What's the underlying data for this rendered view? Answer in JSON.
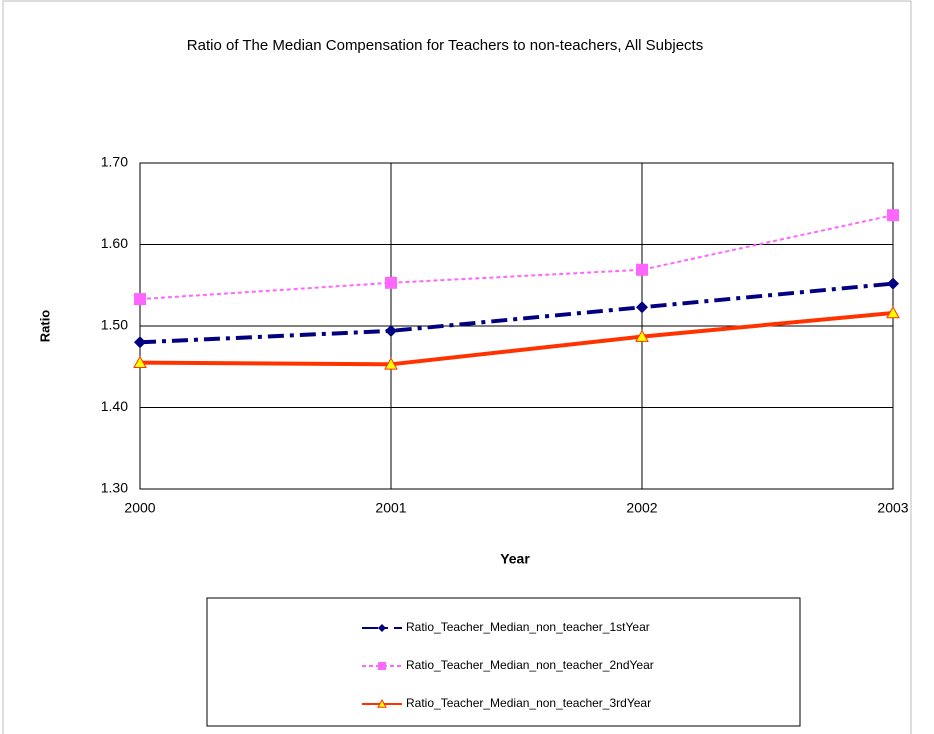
{
  "chart_data": {
    "type": "line",
    "title": "Ratio of The Median Compensation for Teachers to non-teachers, All Subjects",
    "x_label": "Year",
    "y_label": "Ratio",
    "categories": [
      "2000",
      "2001",
      "2002",
      "2003"
    ],
    "ylim": [
      1.3,
      1.7
    ],
    "yticks": [
      {
        "value": 1.3,
        "label": "1.30"
      },
      {
        "value": 1.4,
        "label": "1.40"
      },
      {
        "value": 1.5,
        "label": "1.50"
      },
      {
        "value": 1.6,
        "label": "1.60"
      },
      {
        "value": 1.7,
        "label": "1.70"
      }
    ],
    "grid": true,
    "series": [
      {
        "name": "Ratio_Teacher_Median_non_teacher_1stYear",
        "color": "#000080",
        "values": [
          1.48,
          1.494,
          1.523,
          1.552
        ]
      },
      {
        "name": "Ratio_Teacher_Median_non_teacher_2ndYear",
        "color": "#ff66ff",
        "values": [
          1.533,
          1.553,
          1.569,
          1.636
        ]
      },
      {
        "name": "Ratio_Teacher_Median_non_teacher_3rdYear",
        "color": "#ff3300",
        "values": [
          1.455,
          1.453,
          1.487,
          1.516
        ]
      }
    ]
  }
}
